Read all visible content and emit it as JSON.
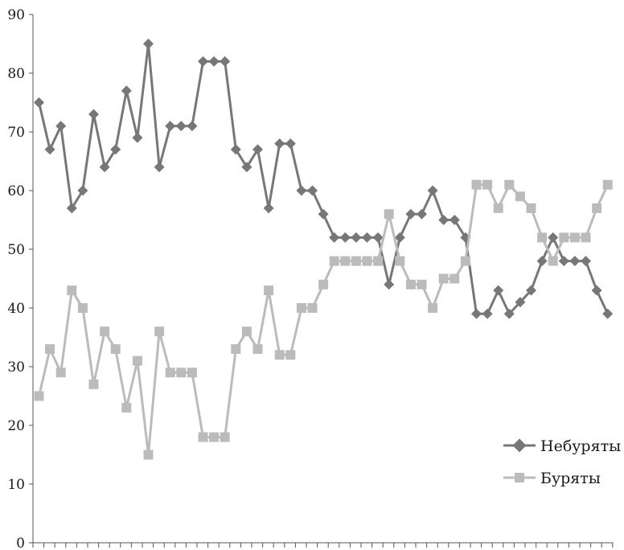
{
  "chart_data": {
    "type": "line",
    "title": "",
    "xlabel": "",
    "ylabel": "",
    "ylim": [
      0,
      90
    ],
    "yticks": [
      0,
      10,
      20,
      30,
      40,
      50,
      60,
      70,
      80,
      90
    ],
    "x_count": 53,
    "grid": false,
    "legend_position": "right",
    "series": [
      {
        "name": "Небуряты",
        "marker": "diamond",
        "color": "#777777",
        "values": [
          75,
          67,
          71,
          57,
          60,
          73,
          64,
          67,
          77,
          69,
          85,
          64,
          71,
          71,
          71,
          82,
          82,
          82,
          67,
          64,
          67,
          57,
          68,
          68,
          60,
          60,
          56,
          52,
          52,
          52,
          52,
          52,
          44,
          52,
          56,
          56,
          60,
          55,
          55,
          52,
          39,
          39,
          43,
          39,
          41,
          43,
          48,
          52,
          48,
          48,
          48,
          43,
          39
        ]
      },
      {
        "name": "Буряты",
        "marker": "square",
        "color": "#bbbbbb",
        "values": [
          25,
          33,
          29,
          43,
          40,
          27,
          36,
          33,
          23,
          31,
          15,
          36,
          29,
          29,
          29,
          18,
          18,
          18,
          33,
          36,
          33,
          43,
          32,
          32,
          40,
          40,
          44,
          48,
          48,
          48,
          48,
          48,
          56,
          48,
          44,
          44,
          40,
          45,
          45,
          48,
          61,
          61,
          57,
          61,
          59,
          57,
          52,
          48,
          52,
          52,
          52,
          57,
          61
        ]
      }
    ]
  }
}
